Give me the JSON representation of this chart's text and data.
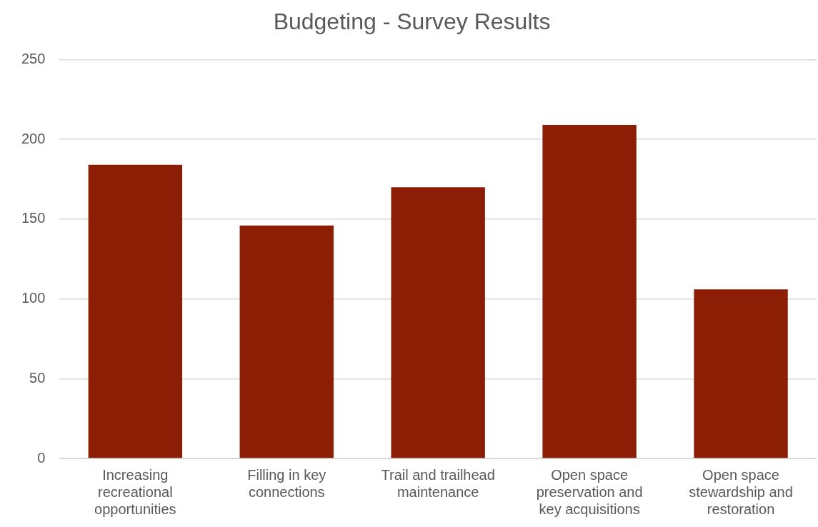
{
  "chart_data": {
    "type": "bar",
    "title": "Budgeting - Survey Results",
    "categories": [
      "Increasing recreational opportunities",
      "Filling in key connections",
      "Trail and trailhead maintenance",
      "Open space preservation and key acquisitions",
      "Open space stewardship and restoration"
    ],
    "values": [
      184,
      146,
      170,
      209,
      106
    ],
    "color": "#8b1e04",
    "ylim": [
      0,
      250
    ],
    "yticks": [
      0,
      50,
      100,
      150,
      200,
      250
    ],
    "grid": "y",
    "legend": false
  }
}
